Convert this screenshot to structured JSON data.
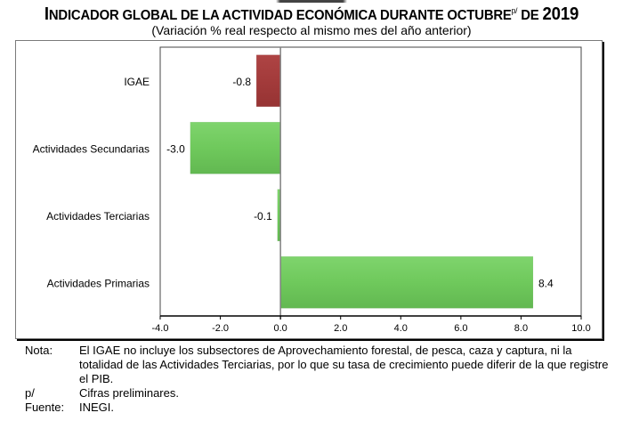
{
  "header": {
    "title_first_letter": "I",
    "title_rest": "NDICADOR GLOBAL DE LA ACTIVIDAD ECONÓMICA DURANTE OCTUBRE",
    "title_superscript": "p/",
    "title_suffix": " DE ",
    "title_year": "2019",
    "subtitle": "(Variación % real respecto al mismo mes del año anterior)"
  },
  "chart_data": {
    "type": "bar",
    "orientation": "horizontal",
    "title": "INDICADOR GLOBAL DE LA ACTIVIDAD ECONÓMICA DURANTE OCTUBRE p/ DE 2019",
    "subtitle": "(Variación % real respecto al mismo mes del año anterior)",
    "categories": [
      "IGAE",
      "Actividades Secundarias",
      "Actividades Terciarias",
      "Actividades  Primarias"
    ],
    "values": [
      -0.8,
      -3.0,
      -0.1,
      8.4
    ],
    "value_labels": [
      "-0.8",
      "-3.0",
      "-0.1",
      "8.4"
    ],
    "bar_colors": [
      "#a33b3b",
      "#6fc95c",
      "#6fc95c",
      "#6fc95c"
    ],
    "xlim": [
      -4.0,
      10.0
    ],
    "x_ticks": [
      -4.0,
      -2.0,
      0.0,
      2.0,
      4.0,
      6.0,
      8.0,
      10.0
    ],
    "x_tick_labels": [
      "-4.0",
      "-2.0",
      "0.0",
      "2.0",
      "4.0",
      "6.0",
      "8.0",
      "10.0"
    ],
    "xlabel": "",
    "ylabel": "",
    "grid": false,
    "legend": "none"
  },
  "notes": [
    {
      "key": "Nota:",
      "text": "El IGAE no incluye los subsectores de Aprovechamiento forestal, de pesca, caza y captura, ni la totalidad de las Actividades Terciarias, por lo que su tasa de crecimiento puede diferir de la que registre el PIB."
    },
    {
      "key": "p/",
      "text": "Cifras preliminares."
    },
    {
      "key": "Fuente:",
      "text": "INEGI."
    }
  ]
}
